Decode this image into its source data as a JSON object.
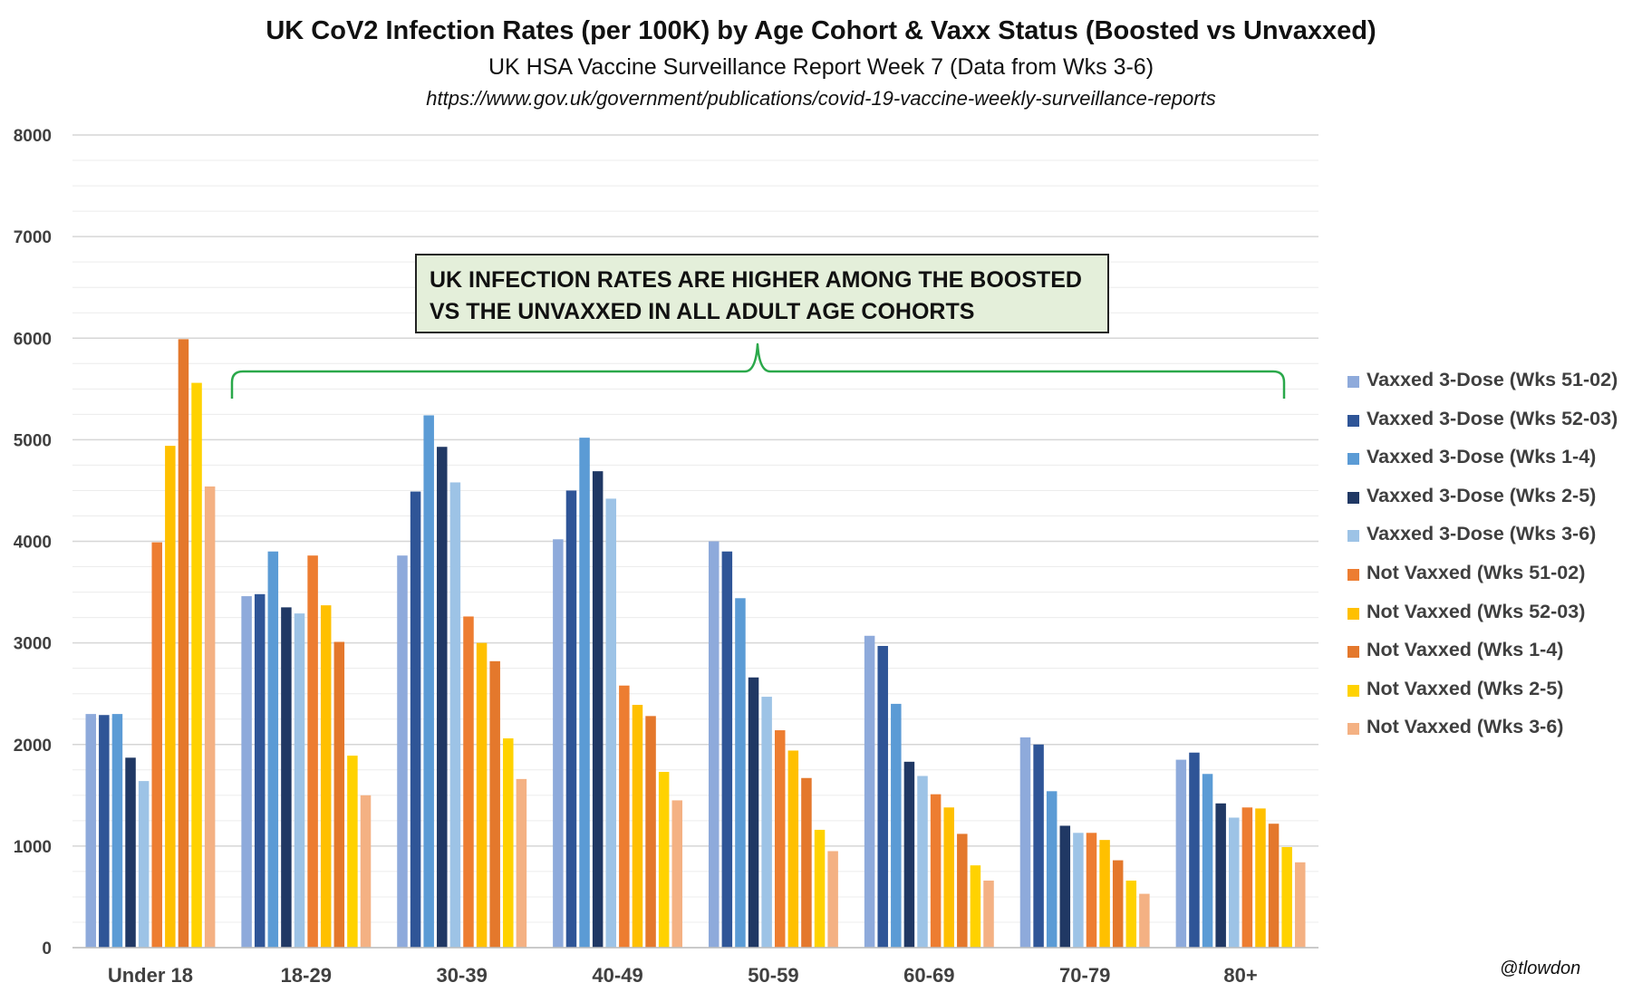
{
  "chart_data": {
    "type": "bar",
    "title": "UK CoV2 Infection Rates (per 100K) by Age Cohort & Vaxx Status (Boosted vs Unvaxxed)",
    "subtitle": "UK HSA Vaccine Surveillance Report Week 7 (Data from Wks 3-6)",
    "source_url": "https://www.gov.uk/government/publications/covid-19-vaccine-weekly-surveillance-reports",
    "annotation": [
      "UK INFECTION RATES ARE HIGHER AMONG THE BOOSTED",
      "VS THE UNVAXXED IN ALL ADULT AGE COHORTS"
    ],
    "credit": "@tlowdon",
    "xlabel": "",
    "ylabel": "",
    "ylim": [
      0,
      8000
    ],
    "yticks": [
      0,
      1000,
      2000,
      3000,
      4000,
      5000,
      6000,
      7000,
      8000
    ],
    "grid": true,
    "legend_position": "right",
    "categories": [
      "Under 18",
      "18-29",
      "30-39",
      "40-49",
      "50-59",
      "60-69",
      "70-79",
      "80+"
    ],
    "series": [
      {
        "name": "Vaxxed 3-Dose (Wks 51-02)",
        "color": "#8eaadb",
        "values": [
          2300,
          3460,
          3860,
          4020,
          4000,
          3070,
          2070,
          1850
        ]
      },
      {
        "name": "Vaxxed 3-Dose (Wks 52-03)",
        "color": "#2f5597",
        "values": [
          2290,
          3480,
          4490,
          4500,
          3900,
          2970,
          2000,
          1920
        ]
      },
      {
        "name": "Vaxxed 3-Dose (Wks 1-4)",
        "color": "#5b9bd5",
        "values": [
          2300,
          3900,
          5240,
          5020,
          3440,
          2400,
          1540,
          1710
        ]
      },
      {
        "name": "Vaxxed 3-Dose (Wks 2-5)",
        "color": "#203864",
        "values": [
          1870,
          3350,
          4930,
          4690,
          2660,
          1830,
          1200,
          1420
        ]
      },
      {
        "name": "Vaxxed 3-Dose (Wks 3-6)",
        "color": "#9dc3e6",
        "values": [
          1640,
          3290,
          4580,
          4420,
          2470,
          1690,
          1130,
          1280
        ]
      },
      {
        "name": "Not Vaxxed (Wks 51-02)",
        "color": "#ed7d31",
        "values": [
          3990,
          3860,
          3260,
          2580,
          2140,
          1510,
          1130,
          1380
        ]
      },
      {
        "name": "Not Vaxxed (Wks 52-03)",
        "color": "#ffc000",
        "values": [
          4940,
          3370,
          3000,
          2390,
          1940,
          1380,
          1060,
          1370
        ]
      },
      {
        "name": "Not Vaxxed (Wks 1-4)",
        "color": "#e4782c",
        "values": [
          5990,
          3010,
          2820,
          2280,
          1670,
          1120,
          860,
          1220
        ]
      },
      {
        "name": "Not Vaxxed (Wks 2-5)",
        "color": "#ffd200",
        "values": [
          5560,
          1890,
          2060,
          1730,
          1160,
          810,
          660,
          990
        ]
      },
      {
        "name": "Not Vaxxed (Wks 3-6)",
        "color": "#f4b183",
        "values": [
          4540,
          1500,
          1660,
          1450,
          950,
          660,
          530,
          840
        ]
      }
    ]
  }
}
